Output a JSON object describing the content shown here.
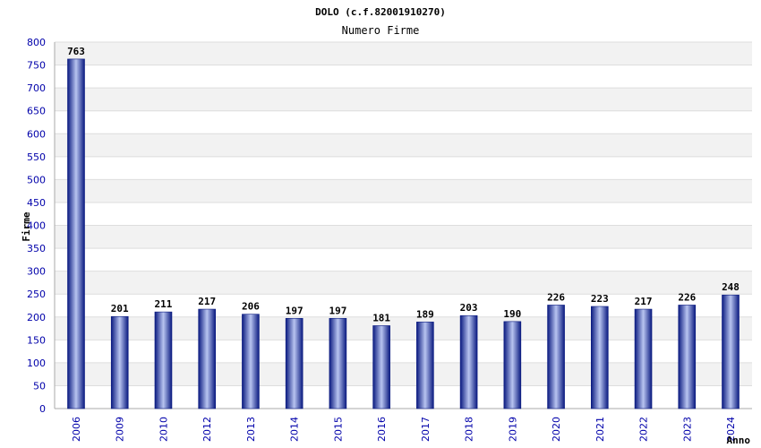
{
  "chart_data": {
    "type": "bar",
    "title": "DOLO (c.f.82001910270)",
    "subtitle": "Numero Firme",
    "xlabel": "Anno",
    "ylabel": "Firme",
    "categories": [
      "2006",
      "2009",
      "2010",
      "2012",
      "2013",
      "2014",
      "2015",
      "2016",
      "2017",
      "2018",
      "2019",
      "2020",
      "2021",
      "2022",
      "2023",
      "2024"
    ],
    "values": [
      763,
      201,
      211,
      217,
      206,
      197,
      197,
      181,
      189,
      203,
      190,
      226,
      223,
      217,
      226,
      248
    ],
    "ylim": [
      0,
      800
    ],
    "ytick_step": 50,
    "yticks": [
      "0",
      "50",
      "100",
      "150",
      "200",
      "250",
      "300",
      "350",
      "400",
      "450",
      "500",
      "550",
      "600",
      "650",
      "700",
      "750",
      "800"
    ],
    "grid": true,
    "legend": "none"
  },
  "colors": {
    "bar_dark": "#0a1a80",
    "bar_light": "#b8c4f0",
    "band": "#f2f2f2",
    "grid": "#dddddd",
    "tick_text": "#0000aa"
  }
}
